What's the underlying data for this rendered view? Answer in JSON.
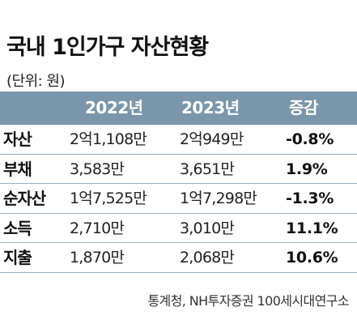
{
  "title": "국내 1인가구 자산현황",
  "unit_note": "(단위: 원)",
  "table": {
    "headers": [
      "",
      "2022년",
      "2023년",
      "증감"
    ],
    "rows": [
      {
        "label": "자산",
        "y2022": "2억1,108만",
        "y2023": "2억949만",
        "change": "-0.8%"
      },
      {
        "label": "부채",
        "y2022": "3,583만",
        "y2023": "3,651만",
        "change": "1.9%"
      },
      {
        "label": "순자산",
        "y2022": "1억7,525만",
        "y2023": "1억7,298만",
        "change": "-1.3%"
      },
      {
        "label": "소득",
        "y2022": "2,710만",
        "y2023": "3,010만",
        "change": "11.1%"
      },
      {
        "label": "지출",
        "y2022": "1,870만",
        "y2023": "2,068만",
        "change": "10.6%"
      }
    ]
  },
  "source": "통계청, NH투자증권 100세시대연구소",
  "colors": {
    "header_bg": "#7a96aa",
    "header_text": "#ffffff",
    "row_divider": "#9ab0c0"
  }
}
